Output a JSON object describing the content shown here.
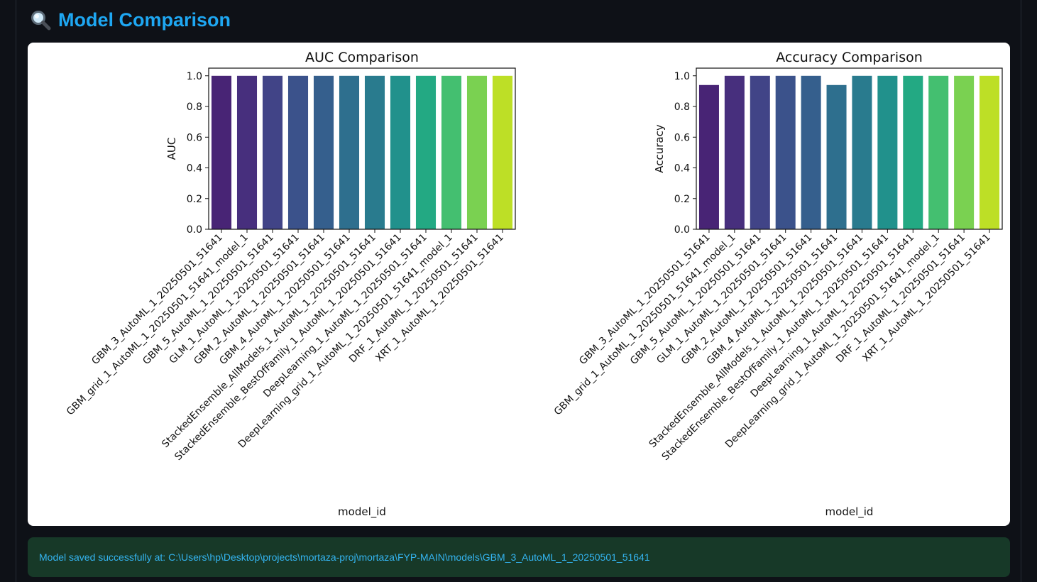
{
  "header": {
    "icon": "magnifier-icon",
    "title": "Model Comparison"
  },
  "status": {
    "message": "Model saved successfully at: C:\\Users\\hp\\Desktop\\projects\\mortaza-proj\\mortaza\\FYP-MAIN\\models\\GBM_3_AutoML_1_20250501_51641"
  },
  "chart_data": [
    {
      "type": "bar",
      "title": "AUC Comparison",
      "xlabel": "model_id",
      "ylabel": "AUC",
      "ylim": [
        0,
        1.05
      ],
      "yticks": [
        "0.0",
        "0.2",
        "0.4",
        "0.6",
        "0.8",
        "1.0"
      ],
      "grid": false,
      "categories": [
        "GBM_3_AutoML_1_20250501_51641",
        "GBM_grid_1_AutoML_1_20250501_51641_model_1",
        "GBM_5_AutoML_1_20250501_51641",
        "GLM_1_AutoML_1_20250501_51641",
        "GBM_2_AutoML_1_20250501_51641",
        "GBM_4_AutoML_1_20250501_51641",
        "StackedEnsemble_AllModels_1_AutoML_1_20250501_51641",
        "StackedEnsemble_BestOfFamily_1_AutoML_1_20250501_51641",
        "DeepLearning_1_AutoML_1_20250501_51641",
        "DeepLearning_grid_1_AutoML_1_20250501_51641_model_1",
        "DRF_1_AutoML_1_20250501_51641",
        "XRT_1_AutoML_1_20250501_51641"
      ],
      "values": [
        1.0,
        1.0,
        1.0,
        1.0,
        1.0,
        1.0,
        1.0,
        1.0,
        1.0,
        1.0,
        1.0,
        1.0
      ],
      "colors": [
        "#482475",
        "#472f7d",
        "#414487",
        "#3b528b",
        "#355f8d",
        "#2e6f8e",
        "#297b8e",
        "#21918c",
        "#23a983",
        "#44bf70",
        "#7ad151",
        "#bddf26"
      ]
    },
    {
      "type": "bar",
      "title": "Accuracy Comparison",
      "xlabel": "model_id",
      "ylabel": "Accuracy",
      "ylim": [
        0,
        1.05
      ],
      "yticks": [
        "0.0",
        "0.2",
        "0.4",
        "0.6",
        "0.8",
        "1.0"
      ],
      "grid": false,
      "categories": [
        "GBM_3_AutoML_1_20250501_51641",
        "GBM_grid_1_AutoML_1_20250501_51641_model_1",
        "GBM_5_AutoML_1_20250501_51641",
        "GLM_1_AutoML_1_20250501_51641",
        "GBM_2_AutoML_1_20250501_51641",
        "GBM_4_AutoML_1_20250501_51641",
        "StackedEnsemble_AllModels_1_AutoML_1_20250501_51641",
        "StackedEnsemble_BestOfFamily_1_AutoML_1_20250501_51641",
        "DeepLearning_1_AutoML_1_20250501_51641",
        "DeepLearning_grid_1_AutoML_1_20250501_51641_model_1",
        "DRF_1_AutoML_1_20250501_51641",
        "XRT_1_AutoML_1_20250501_51641"
      ],
      "values": [
        0.94,
        1.0,
        1.0,
        1.0,
        1.0,
        0.94,
        1.0,
        1.0,
        1.0,
        1.0,
        1.0,
        1.0
      ],
      "colors": [
        "#482475",
        "#472f7d",
        "#414487",
        "#3b528b",
        "#355f8d",
        "#2e6f8e",
        "#297b8e",
        "#21918c",
        "#23a983",
        "#44bf70",
        "#7ad151",
        "#bddf26"
      ]
    }
  ]
}
